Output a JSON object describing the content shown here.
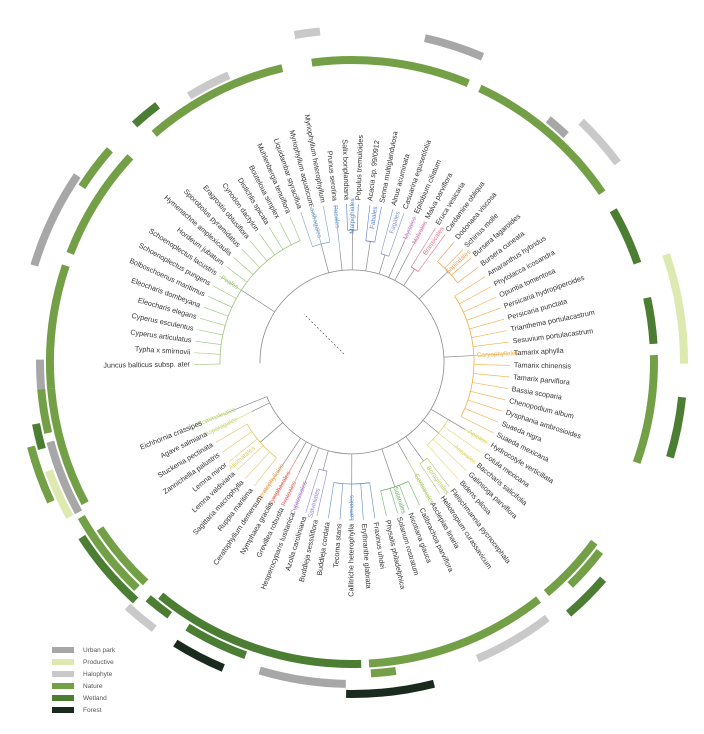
{
  "colors": {
    "urban_park": "#a7a7a7",
    "productive": "#dde9b0",
    "halophyte": "#c9c9c9",
    "nature": "#73a046",
    "wetland": "#4b7d33",
    "forest": "#1a2a1f",
    "branch": "#8a8a8a"
  },
  "legend": [
    {
      "label": "Urban park",
      "color_key": "urban_park"
    },
    {
      "label": "Productive",
      "color_key": "productive"
    },
    {
      "label": "Halophyte",
      "color_key": "halophyte"
    },
    {
      "label": "Nature",
      "color_key": "nature"
    },
    {
      "label": "Wetland",
      "color_key": "wetland"
    },
    {
      "label": "Forest",
      "color_key": "forest"
    }
  ],
  "species": [
    "Juncus balticus subsp. ater",
    "Typha x smirnovii",
    "Cyperus articulatus",
    "Cyperus esculentus",
    "Eleocharis elegans",
    "Eleocharis dombeyana",
    "Bolboschoenus maritimus",
    "Schoenoplectus pungens",
    "Schoenoplectus lacustris",
    "Hordeum jubatum",
    "Hymenachne amplexicaulis",
    "Sporobolus pyramidatus",
    "Eragrostis obtusiflora",
    "Cynodon dactylon",
    "Distichlis spicata",
    "Bouteloua simplex",
    "Muhlenbergia tenuiflora",
    "Liquidambar styraciflua",
    "Myriophyllum aquaticum",
    "Myriophyllum heterophyllum",
    "Prunus serotina",
    "Salix bonplandiana",
    "Populus tremuloides",
    "Acacia sp. 99/0912",
    "Senna multiglandulosa",
    "Alnus acuminata",
    "Casuarina equisetifolia",
    "Epilobium ciliatum",
    "Malva parviflora",
    "Eruca vesicaria",
    "Cardamine obliqua",
    "Dodonaea viscosa",
    "Schinus molle",
    "Bursera fagaroides",
    "Bursera cuneata",
    "Amaranthus hybridus",
    "Phytolacca icosandra",
    "Opuntia tomentosa",
    "Persicaria hydropiperoides",
    "Persicaria punctata",
    "Trianthema portulacastrum",
    "Sesuvium portulacastrum",
    "Tamarix aphylla",
    "Tamarix chinensis",
    "Tamarix parviflora",
    "Bassia scoparia",
    "Chenopodium album",
    "Dysphania ambrosioides",
    "Suaeda nigra",
    "Suaeda mexicana",
    "Hydrocotyle verticillata",
    "Cotula mexicana",
    "Baccharis salicifolia",
    "Galinsoga parviflora",
    "Bidens pilosa",
    "Fleischmannia pycnocephala",
    "Heliotropium curassavicum",
    "Asclepias linaria",
    "Calibrachoa parviflora",
    "Nicotiana glauca",
    "Solanum rostratum",
    "Physalis philadelphica",
    "Fraxinus uhdei",
    "Erythranthe glabrata",
    "Callitriche heterophylla",
    "Tecoma stans",
    "Buddleja cordata",
    "Buddleja sessiliflora",
    "Azolla caroliniana",
    "Hesperocyparis lusitanica",
    "Grevillea robusta",
    "Nymphaea gracilis",
    "Ceratophyllum demersum",
    "Ruppia maritima",
    "Sagittaria macrophylla",
    "Lemna valdiviana",
    "Lemna minor",
    "Zannichellia palustris",
    "Stuckenia pectinata",
    "Agave salmiana",
    "Eichhornia crassipes"
  ],
  "orders": [
    {
      "label": "Poales",
      "color": "#9bc57a"
    },
    {
      "label": "Saxifragales",
      "color": "#7fa3bf"
    },
    {
      "label": "Rosales",
      "color": "#6f9fd1"
    },
    {
      "label": "Malpighiales",
      "color": "#4f7fc4"
    },
    {
      "label": "Fabales",
      "color": "#5b7fd0"
    },
    {
      "label": "Fagales",
      "color": "#8294c9"
    },
    {
      "label": "Myrtales",
      "color": "#c68bd6"
    },
    {
      "label": "Malvales",
      "color": "#d27fb0"
    },
    {
      "label": "Brassicales",
      "color": "#e0748a"
    },
    {
      "label": "Sapindales",
      "color": "#ee9c55"
    },
    {
      "label": "Caryophyllales",
      "color": "#f0ae42"
    },
    {
      "label": "Asterales",
      "color": "#e4d676"
    },
    {
      "label": "Apiales",
      "color": "#d8d86a"
    },
    {
      "label": "Boraginales",
      "color": "#b8c96a"
    },
    {
      "label": "Gentianales",
      "color": "#a9c964"
    },
    {
      "label": "Solanales",
      "color": "#6cb46a"
    },
    {
      "label": "Lamiales",
      "color": "#5e8dc8"
    },
    {
      "label": "Salviniales",
      "color": "#9686d2"
    },
    {
      "label": "Cupressales",
      "color": "#b17ac9"
    },
    {
      "label": "Proteales",
      "color": "#e37b7b"
    },
    {
      "label": "Nymphaeales",
      "color": "#e86a5a"
    },
    {
      "label": "Ceratophyllales",
      "color": "#e99f55"
    },
    {
      "label": "Alismatales",
      "color": "#e3c565"
    },
    {
      "label": "Asparagales",
      "color": "#c7d877"
    },
    {
      "label": "Commelinales",
      "color": "#b5d36f"
    }
  ]
}
